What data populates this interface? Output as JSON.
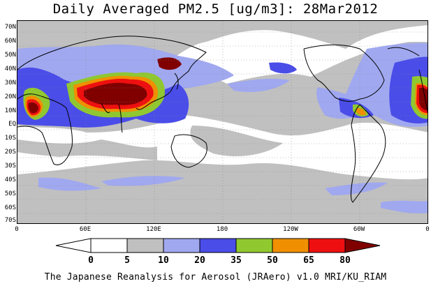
{
  "title": "Daily Averaged PM2.5 [ug/m3]: 28Mar2012",
  "footer": "The Japanese Reanalysis for Aerosol (JRAero) v1.0 MRI/KU_RIAM",
  "lat_labels": [
    "70N",
    "60N",
    "50N",
    "40N",
    "30N",
    "20N",
    "10N",
    "EQ",
    "10S",
    "20S",
    "30S",
    "40S",
    "50S",
    "60S",
    "70S"
  ],
  "lon_labels": [
    "0",
    "60E",
    "120E",
    "180",
    "120W",
    "60W",
    "0"
  ],
  "colorbar": {
    "levels": [
      "0",
      "5",
      "10",
      "20",
      "35",
      "50",
      "65",
      "80"
    ],
    "colors": [
      "#ffffff",
      "#c0c0c0",
      "#a0a8f0",
      "#4a4de8",
      "#90c830",
      "#f09000",
      "#ee1010",
      "#800000"
    ]
  },
  "map_layers": {
    "gray": "#c0c0c0",
    "lightblue": "#a0a8f0",
    "blue": "#4a4de8",
    "green": "#90c830",
    "orange": "#f09000",
    "red": "#ee1010",
    "darkred": "#800000",
    "coast": "#000000",
    "grid": "#888888"
  }
}
